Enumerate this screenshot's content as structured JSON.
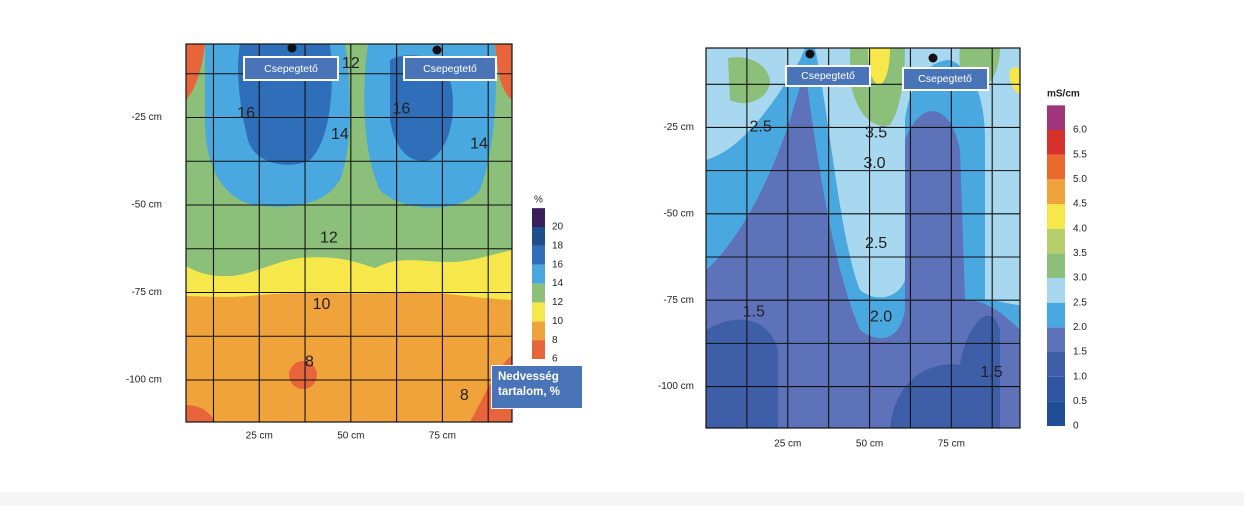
{
  "chart_data": [
    {
      "type": "contour",
      "xlim": [
        5,
        94
      ],
      "ylim": [
        -112,
        -4
      ],
      "xticks": [
        {
          "value": 25,
          "label": "25 cm"
        },
        {
          "value": 50,
          "label": "50 cm"
        },
        {
          "value": 75,
          "label": "75 cm"
        }
      ],
      "yticks": [
        {
          "value": -25,
          "label": "-25 cm"
        },
        {
          "value": -50,
          "label": "-50 cm"
        },
        {
          "value": -75,
          "label": "-75 cm"
        },
        {
          "value": -100,
          "label": "-100 cm"
        }
      ],
      "xgrid": [
        12.5,
        25,
        37.5,
        50,
        62.5,
        75,
        87.5
      ],
      "ygrid": [
        -12.5,
        -25,
        -37.5,
        -50,
        -62.5,
        -75,
        -87.5,
        -100
      ],
      "annotations": [
        "Csepegtető",
        "Csepegtető"
      ],
      "colorbar": {
        "label": "%",
        "title": "Nedvesség tartalom, %",
        "levels": [
          6,
          8,
          10,
          12,
          14,
          16,
          18,
          20
        ],
        "colors": [
          "#e8643a",
          "#f0a33a",
          "#f6e84a",
          "#8cbf7a",
          "#4aa8e0",
          "#2f6fba",
          "#1f4e8c",
          "#3b1f5a"
        ]
      },
      "contour_labels": [
        {
          "value": 12,
          "x": 50,
          "y": -9.6
        },
        {
          "value": 16,
          "x": 21.4,
          "y": -24
        },
        {
          "value": 14,
          "x": 47,
          "y": -30
        },
        {
          "value": 16,
          "x": 63.8,
          "y": -22.7
        },
        {
          "value": 14,
          "x": 85,
          "y": -32.6
        },
        {
          "value": 12,
          "x": 44,
          "y": -59.5
        },
        {
          "value": 10,
          "x": 42,
          "y": -78.5
        },
        {
          "value": 8,
          "x": 38.7,
          "y": -95
        },
        {
          "value": 8,
          "x": 81,
          "y": -104.5
        }
      ]
    },
    {
      "type": "contour",
      "xlim": [
        0,
        96
      ],
      "ylim": [
        -112,
        -2
      ],
      "xticks": [
        {
          "value": 25,
          "label": "25 cm"
        },
        {
          "value": 50,
          "label": "50 cm"
        },
        {
          "value": 75,
          "label": "75 cm"
        }
      ],
      "yticks": [
        {
          "value": -25,
          "label": "-25 cm"
        },
        {
          "value": -50,
          "label": "-50 cm"
        },
        {
          "value": -75,
          "label": "-75 cm"
        },
        {
          "value": -100,
          "label": "-100 cm"
        }
      ],
      "xgrid": [
        12.5,
        25,
        37.5,
        50,
        62.5,
        75,
        87.5
      ],
      "ygrid": [
        -12.5,
        -25,
        -37.5,
        -50,
        -62.5,
        -75,
        -87.5,
        -100
      ],
      "annotations": [
        "Csepegtető",
        "Csepegtető"
      ],
      "colorbar": {
        "label": "mS/cm",
        "levels": [
          0,
          0.5,
          {
            "value": 1,
            "label": "1.0"
          },
          1.5,
          {
            "value": 2,
            "label": "2.0"
          },
          2.5,
          {
            "value": 3,
            "label": "3.0"
          },
          3.5,
          {
            "value": 4,
            "label": "4.0"
          },
          4.5,
          {
            "value": 5,
            "label": "5.0"
          },
          5.5,
          {
            "value": 6,
            "label": "6.0"
          }
        ],
        "colors": [
          "#1f4e96",
          "#2f55a0",
          "#3f5ea8",
          "#5d72b8",
          "#4aa8e0",
          "#a8d8f0",
          "#8cbf7a",
          "#b5cf6b",
          "#f6e84a",
          "#f0a33a",
          "#ea6a2e",
          "#d9312c",
          "#a0357a"
        ]
      },
      "contour_labels": [
        {
          "value": 2.5,
          "x": 16.7,
          "y": -25
        },
        {
          "value": 3.5,
          "x": 52,
          "y": -26.7
        },
        {
          "value": 3,
          "label": "3.0",
          "x": 51.5,
          "y": -35.5
        },
        {
          "value": 2.5,
          "x": 52,
          "y": -58.7
        },
        {
          "value": 1.5,
          "x": 14.6,
          "y": -78.5
        },
        {
          "value": 2,
          "label": "2.0",
          "x": 53.5,
          "y": -80
        },
        {
          "value": 1.5,
          "x": 87.3,
          "y": -96
        }
      ]
    }
  ]
}
